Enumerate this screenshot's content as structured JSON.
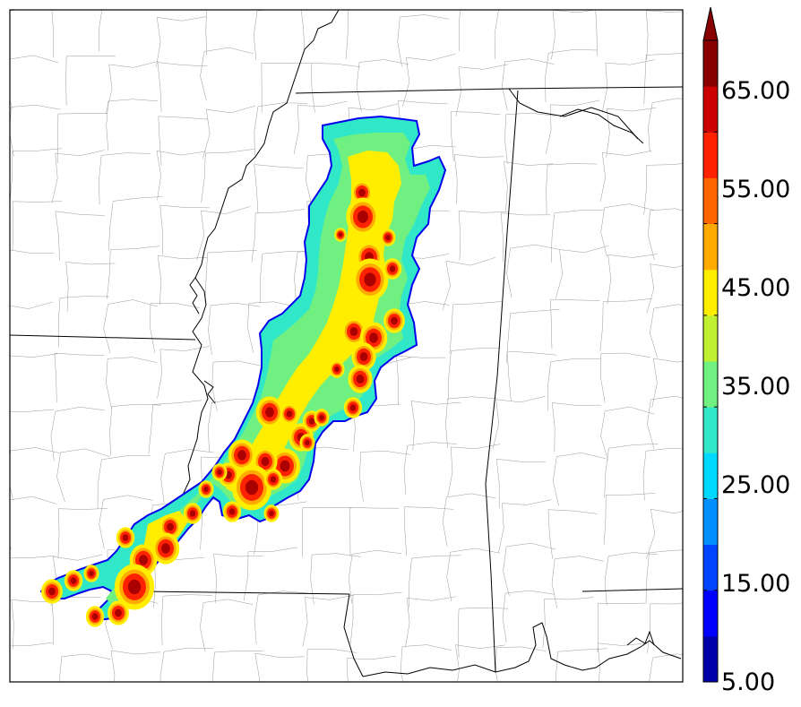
{
  "colorbar": {
    "tick_labels": [
      "5.00",
      "15.00",
      "25.00",
      "35.00",
      "45.00",
      "55.00",
      "65.00"
    ],
    "levels": [
      5,
      10,
      15,
      20,
      25,
      30,
      35,
      40,
      45,
      50,
      55,
      60,
      65,
      70
    ],
    "colors": [
      "#0000aa",
      "#0000ff",
      "#0044ff",
      "#0090ff",
      "#00d8ff",
      "#30e8c8",
      "#70f080",
      "#c0f030",
      "#ffee00",
      "#ffaa00",
      "#ff6600",
      "#ff2200",
      "#cc0000",
      "#880000"
    ],
    "extend": "max"
  },
  "map": {
    "region": "Lower Mississippi Valley",
    "field_colors": {
      "outline": "#0000ee",
      "low": "#30e8c8",
      "mid": "#70f080",
      "high": "#ffee00",
      "core": "#ff2200",
      "peak": "#aa0000"
    }
  }
}
